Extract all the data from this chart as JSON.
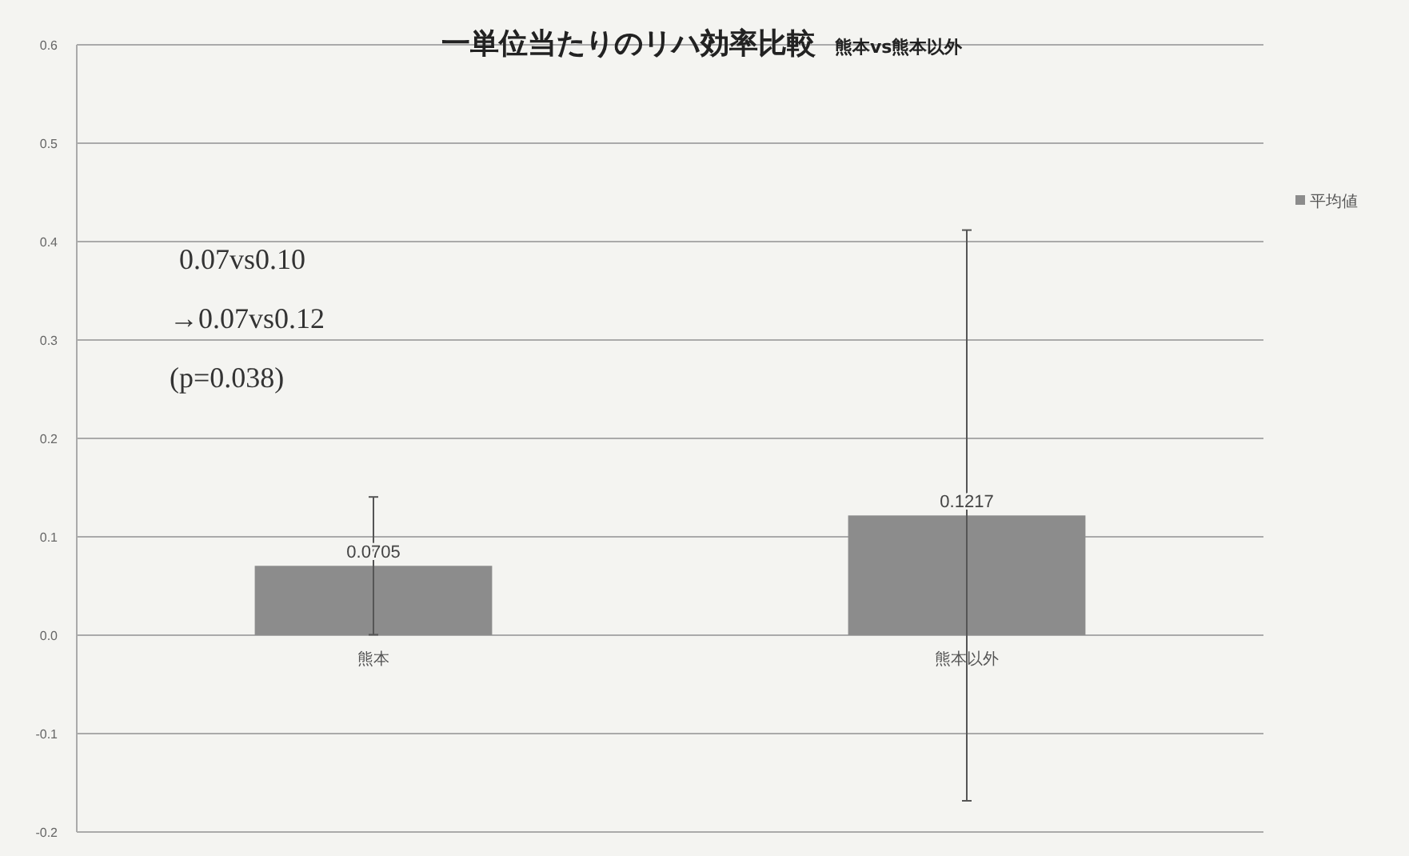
{
  "chart_data": {
    "type": "bar",
    "title": "一単位当たりのリハ効率比較",
    "subtitle": "熊本vs熊本以外",
    "categories": [
      "熊本",
      "熊本以外"
    ],
    "series": [
      {
        "name": "平均値",
        "color": "#8c8c8c",
        "values": [
          0.0705,
          0.1217
        ],
        "errors": [
          0.07,
          0.29
        ]
      }
    ],
    "data_labels": true,
    "ylim": [
      -0.2,
      0.6
    ],
    "yticks": [
      {
        "value": -0.2,
        "label": "-0.2"
      },
      {
        "value": -0.1,
        "label": "-0.1"
      },
      {
        "value": 0,
        "label": "0.0"
      },
      0.1,
      0.2,
      0.3,
      0.4,
      0.5,
      0.6
    ],
    "grid": "y",
    "legend": "right",
    "annotations": [
      "0.07vs0.10",
      "→0.07vs0.12",
      "(p=0.038)"
    ]
  }
}
